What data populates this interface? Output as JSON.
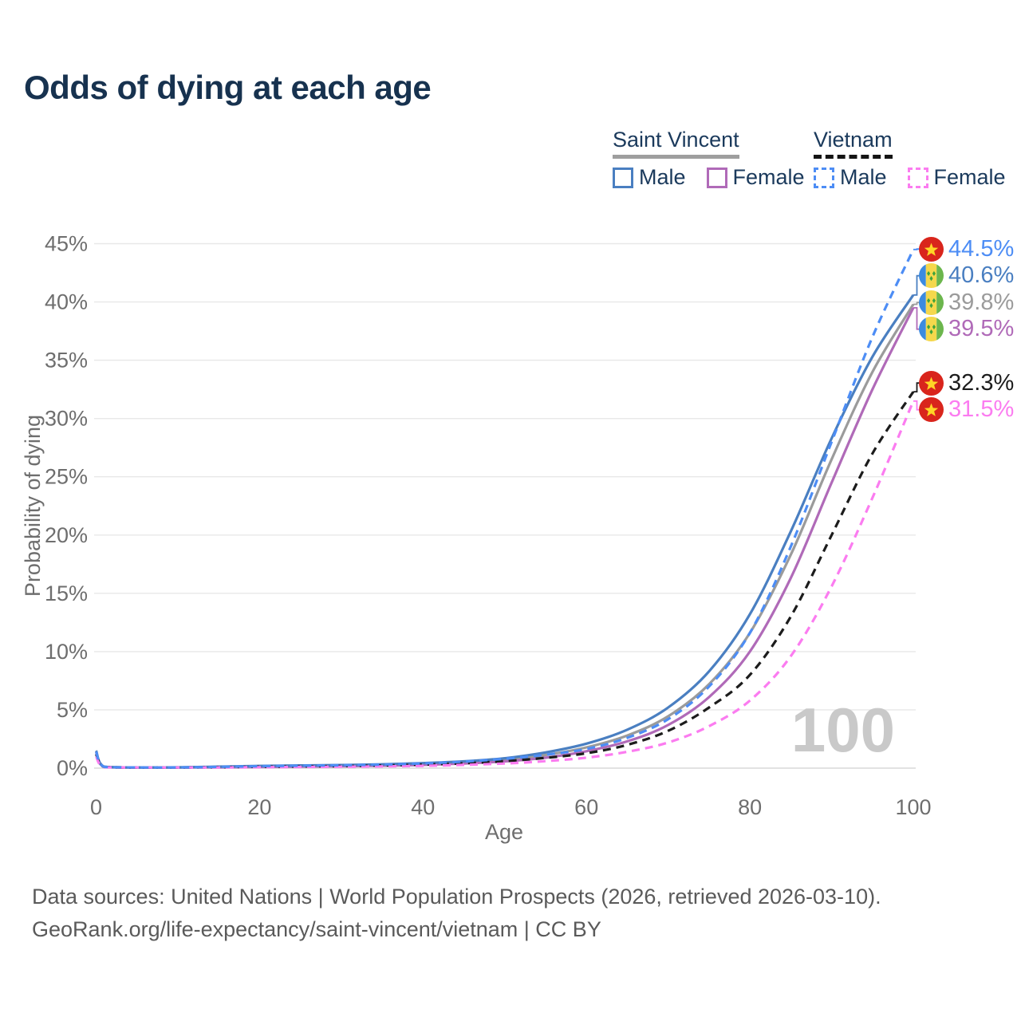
{
  "title": "Odds of dying at each age",
  "legend": {
    "groups": [
      {
        "name": "Saint Vincent",
        "underline_style": "solid",
        "underline_color": "#9e9e9e",
        "items": [
          {
            "label": "Male",
            "color": "#4a7fc1",
            "dashed": false
          },
          {
            "label": "Female",
            "color": "#b06ab8",
            "dashed": false
          }
        ]
      },
      {
        "name": "Vietnam",
        "underline_style": "dashed",
        "underline_color": "#141414",
        "items": [
          {
            "label": "Male",
            "color": "#4d8df5",
            "dashed": true
          },
          {
            "label": "Female",
            "color": "#fb7cf0",
            "dashed": true
          }
        ]
      }
    ]
  },
  "watermark": "100",
  "footer": {
    "line1": "Data sources: United Nations | World Population Prospects (2026, retrieved 2026-03-10).",
    "line2": "GeoRank.org/life-expectancy/saint-vincent/vietnam | CC BY"
  },
  "chart_data": {
    "type": "line",
    "title": "Odds of dying at each age",
    "xlabel": "Age",
    "ylabel": "Probability of dying",
    "x_range": [
      0,
      100
    ],
    "y_range_percent": [
      0,
      45
    ],
    "x_ticks": [
      0,
      20,
      40,
      60,
      80,
      100
    ],
    "y_ticks_percent": [
      0,
      5,
      10,
      15,
      20,
      25,
      30,
      35,
      40,
      45
    ],
    "grid": "horizontal",
    "legend_position": "top-right",
    "colors": {
      "grid": "#e8e8e8",
      "baseline": "#d9d9d9",
      "axis_text": "#6e6e6e",
      "title_text": "#17324f",
      "watermark": "#c9c9c9",
      "footer_text": "#5a5a5a"
    },
    "ages": [
      0,
      1,
      5,
      10,
      15,
      20,
      25,
      30,
      35,
      40,
      45,
      50,
      55,
      60,
      65,
      70,
      75,
      80,
      85,
      90,
      95,
      100
    ],
    "series": [
      {
        "group": "Saint Vincent",
        "sex": "Both",
        "line": "solid",
        "color": "#9b9b9b",
        "flag": "saint-vincent",
        "end_label": "39.8%",
        "values_percent": [
          1.38,
          0.11,
          0.05,
          0.06,
          0.1,
          0.15,
          0.18,
          0.22,
          0.27,
          0.36,
          0.49,
          0.72,
          1.13,
          1.78,
          2.8,
          4.45,
          7.2,
          11.6,
          18.3,
          26.5,
          34.0,
          39.8
        ]
      },
      {
        "group": "Saint Vincent",
        "sex": "Female",
        "line": "solid",
        "color": "#b06ab8",
        "flag": "saint-vincent",
        "end_label": "39.5%",
        "values_percent": [
          1.25,
          0.1,
          0.05,
          0.05,
          0.07,
          0.1,
          0.13,
          0.16,
          0.21,
          0.28,
          0.4,
          0.58,
          0.9,
          1.45,
          2.3,
          3.7,
          6.1,
          10.0,
          16.3,
          24.5,
          32.5,
          39.5
        ]
      },
      {
        "group": "Saint Vincent",
        "sex": "Male",
        "line": "solid",
        "color": "#4a7fc1",
        "flag": "saint-vincent",
        "end_label": "40.6%",
        "values_percent": [
          1.5,
          0.12,
          0.06,
          0.07,
          0.13,
          0.19,
          0.23,
          0.27,
          0.33,
          0.43,
          0.58,
          0.85,
          1.35,
          2.1,
          3.3,
          5.2,
          8.3,
          13.2,
          20.3,
          28.3,
          35.3,
          40.6
        ]
      },
      {
        "group": "Vietnam",
        "sex": "Both",
        "line": "dashed",
        "color": "#1c1c1c",
        "flag": "vietnam",
        "end_label": "32.3%",
        "values_percent": [
          1.2,
          0.1,
          0.05,
          0.05,
          0.08,
          0.12,
          0.15,
          0.18,
          0.23,
          0.31,
          0.42,
          0.6,
          0.88,
          1.28,
          2.0,
          3.2,
          5.2,
          8.0,
          13.0,
          20.0,
          27.0,
          32.3
        ]
      },
      {
        "group": "Vietnam",
        "sex": "Female",
        "line": "dashed",
        "color": "#fb7cf0",
        "flag": "vietnam",
        "end_label": "31.5%",
        "values_percent": [
          1.0,
          0.08,
          0.04,
          0.04,
          0.05,
          0.08,
          0.1,
          0.12,
          0.15,
          0.2,
          0.28,
          0.4,
          0.6,
          0.9,
          1.4,
          2.2,
          3.6,
          5.8,
          9.6,
          15.6,
          23.2,
          31.5
        ]
      },
      {
        "group": "Vietnam",
        "sex": "Male",
        "line": "dashed",
        "color": "#4d8df5",
        "flag": "vietnam",
        "end_label": "44.5%",
        "values_percent": [
          1.4,
          0.11,
          0.06,
          0.06,
          0.11,
          0.17,
          0.21,
          0.25,
          0.31,
          0.41,
          0.56,
          0.8,
          1.15,
          1.65,
          2.6,
          4.2,
          7.0,
          11.6,
          19.0,
          28.0,
          37.0,
          44.5
        ]
      }
    ]
  }
}
